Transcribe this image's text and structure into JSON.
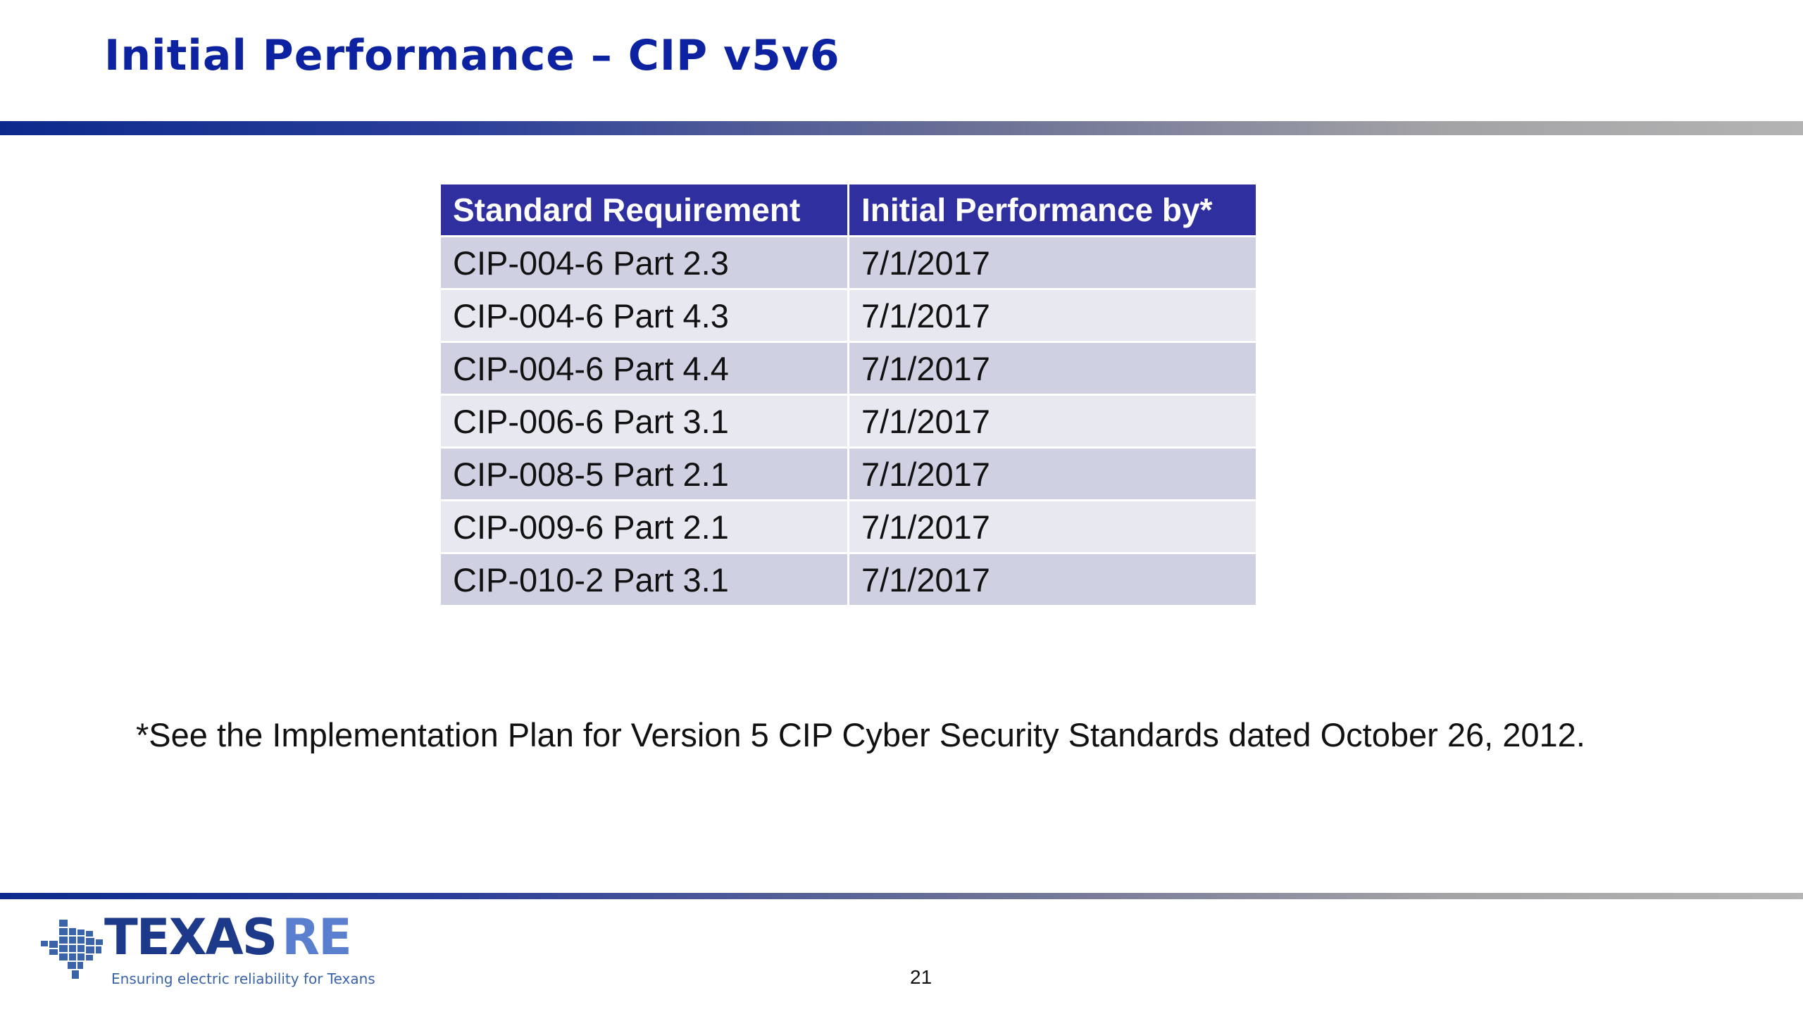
{
  "slide": {
    "title": "Initial Performance – CIP v5v6",
    "page_number": "21"
  },
  "table": {
    "headers": [
      "Standard Requirement",
      "Initial Performance by*"
    ],
    "rows": [
      [
        "CIP-004-6 Part 2.3",
        "7/1/2017"
      ],
      [
        "CIP-004-6 Part 4.3",
        "7/1/2017"
      ],
      [
        "CIP-004-6 Part 4.4",
        "7/1/2017"
      ],
      [
        "CIP-006-6 Part 3.1",
        "7/1/2017"
      ],
      [
        "CIP-008-5 Part 2.1",
        "7/1/2017"
      ],
      [
        "CIP-009-6 Part 2.1",
        "7/1/2017"
      ],
      [
        "CIP-010-2 Part 3.1",
        "7/1/2017"
      ]
    ]
  },
  "footnote": "*See the Implementation Plan for Version 5 CIP Cyber Security Standards dated October 26, 2012.",
  "logo": {
    "word_main": "TEXAS",
    "word_accent": "RE",
    "tagline": "Ensuring electric reliability for Texans",
    "icon": "texas-map-icon"
  },
  "colors": {
    "title": "#0d22a0",
    "header_bg": "#2f2fa0",
    "row_odd": "#d0d0e3",
    "row_even": "#e8e8f0",
    "logo_main": "#1d3a8a",
    "logo_accent": "#5b7fcf"
  }
}
